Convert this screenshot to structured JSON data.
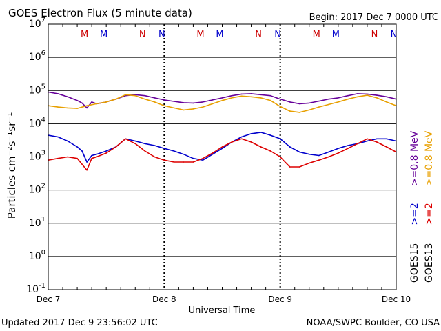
{
  "header": {
    "title": "GOES Electron Flux (5 minute data)",
    "begin": "Begin: 2017 Dec 7 0000 UTC"
  },
  "footer": {
    "updated": "Updated 2017 Dec  9 23:56:02 UTC",
    "credit": "NOAA/SWPC Boulder, CO USA"
  },
  "chart_data": {
    "type": "line",
    "xlabel": "Universal Time",
    "ylabel": "Particles cm⁻²s⁻¹sr⁻¹",
    "yscale": "log",
    "ylim": [
      0.1,
      10000000
    ],
    "xlim": [
      0,
      72
    ],
    "x_unit": "hours since 2017 Dec 7 0000 UTC",
    "grid": "horizontal decades",
    "reference_line": 1000,
    "x_ticks": [
      {
        "x": 0,
        "label": "Dec 7"
      },
      {
        "x": 24,
        "label": "Dec 8"
      },
      {
        "x": 48,
        "label": "Dec 9"
      },
      {
        "x": 72,
        "label": "Dec 10"
      }
    ],
    "y_ticks": [
      {
        "exp": 7,
        "mant": "10",
        "sup": "7"
      },
      {
        "exp": 6,
        "mant": "10",
        "sup": "6"
      },
      {
        "exp": 5,
        "mant": "10",
        "sup": "5"
      },
      {
        "exp": 4,
        "mant": "10",
        "sup": "4"
      },
      {
        "exp": 3,
        "mant": "10",
        "sup": "3"
      },
      {
        "exp": 2,
        "mant": "10",
        "sup": "2"
      },
      {
        "exp": 1,
        "mant": "10",
        "sup": "1"
      },
      {
        "exp": 0,
        "mant": "10",
        "sup": "0"
      },
      {
        "exp": -1,
        "mant": "10",
        "sup": "-1"
      }
    ],
    "local_time_markers": [
      {
        "x": 7.5,
        "label": "M",
        "color": "#cc0000"
      },
      {
        "x": 11.5,
        "label": "M",
        "color": "#0000cc"
      },
      {
        "x": 19.5,
        "label": "N",
        "color": "#cc0000"
      },
      {
        "x": 23.5,
        "label": "N",
        "color": "#0000cc"
      },
      {
        "x": 31.5,
        "label": "M",
        "color": "#cc0000"
      },
      {
        "x": 35.5,
        "label": "M",
        "color": "#0000cc"
      },
      {
        "x": 43.5,
        "label": "N",
        "color": "#cc0000"
      },
      {
        "x": 47.5,
        "label": "N",
        "color": "#0000cc"
      },
      {
        "x": 55.5,
        "label": "M",
        "color": "#cc0000"
      },
      {
        "x": 59.5,
        "label": "M",
        "color": "#0000cc"
      },
      {
        "x": 67.5,
        "label": "N",
        "color": "#cc0000"
      },
      {
        "x": 71.5,
        "label": "N",
        "color": "#0000cc"
      }
    ],
    "legend": {
      "placement": "right",
      "columns": [
        {
          "satellite": "GOES15",
          "items": [
            {
              "label": ">=2",
              "color": "#0000cc"
            },
            {
              "label": ">=0.8 MeV",
              "color": "#660099"
            }
          ]
        },
        {
          "satellite": "GOES13",
          "items": [
            {
              "label": ">=2",
              "color": "#dd0000"
            },
            {
              "label": ">=0.8 MeV",
              "color": "#e8a000"
            }
          ]
        }
      ]
    },
    "series": [
      {
        "name": "GOES15 >=0.8 MeV",
        "color": "#660099",
        "x": [
          0,
          2,
          4,
          6,
          7,
          8,
          9,
          10,
          12,
          14,
          16,
          18,
          20,
          22,
          24,
          26,
          28,
          30,
          32,
          34,
          36,
          38,
          40,
          42,
          44,
          46,
          48,
          50,
          52,
          54,
          56,
          58,
          60,
          62,
          64,
          66,
          68,
          70,
          72
        ],
        "y": [
          90000,
          80000,
          65000,
          50000,
          42000,
          30000,
          45000,
          40000,
          45000,
          55000,
          70000,
          75000,
          70000,
          60000,
          52000,
          47000,
          43000,
          42000,
          45000,
          52000,
          60000,
          70000,
          78000,
          80000,
          75000,
          70000,
          55000,
          45000,
          40000,
          42000,
          48000,
          55000,
          60000,
          70000,
          80000,
          78000,
          72000,
          65000,
          55000
        ]
      },
      {
        "name": "GOES13 >=0.8 MeV",
        "color": "#e8a000",
        "x": [
          0,
          2,
          4,
          6,
          8,
          10,
          12,
          14,
          16,
          18,
          20,
          22,
          24,
          26,
          28,
          30,
          32,
          34,
          36,
          38,
          40,
          42,
          44,
          46,
          48,
          50,
          52,
          54,
          56,
          58,
          60,
          62,
          64,
          66,
          68,
          70,
          72
        ],
        "y": [
          35000,
          32000,
          30000,
          29000,
          35000,
          40000,
          45000,
          55000,
          75000,
          70000,
          55000,
          45000,
          35000,
          30000,
          26000,
          28000,
          32000,
          40000,
          50000,
          60000,
          68000,
          65000,
          60000,
          50000,
          33000,
          24000,
          22000,
          26000,
          32000,
          38000,
          45000,
          55000,
          65000,
          72000,
          60000,
          45000,
          35000
        ]
      },
      {
        "name": "GOES15 >=2 MeV",
        "color": "#0000cc",
        "x": [
          0,
          2,
          4,
          6,
          7,
          8,
          9,
          10,
          12,
          14,
          16,
          18,
          20,
          22,
          24,
          26,
          28,
          30,
          32,
          34,
          36,
          38,
          40,
          42,
          44,
          46,
          48,
          50,
          52,
          54,
          56,
          58,
          60,
          62,
          64,
          66,
          68,
          70,
          72
        ],
        "y": [
          4500,
          4000,
          3000,
          2000,
          1500,
          700,
          1100,
          1200,
          1500,
          2000,
          3500,
          3000,
          2500,
          2200,
          1800,
          1500,
          1200,
          900,
          800,
          1200,
          1800,
          2800,
          4000,
          5000,
          5500,
          4500,
          3500,
          2000,
          1400,
          1200,
          1100,
          1400,
          1800,
          2200,
          2500,
          3000,
          3500,
          3500,
          3000
        ]
      },
      {
        "name": "GOES13 >=2 MeV",
        "color": "#dd0000",
        "x": [
          0,
          2,
          4,
          6,
          8,
          9,
          10,
          12,
          14,
          16,
          18,
          20,
          22,
          24,
          26,
          28,
          30,
          32,
          34,
          36,
          38,
          40,
          42,
          44,
          46,
          48,
          49,
          50,
          52,
          54,
          56,
          58,
          60,
          62,
          64,
          66,
          68,
          70,
          72
        ],
        "y": [
          800,
          900,
          1000,
          900,
          400,
          900,
          1000,
          1300,
          2000,
          3500,
          2500,
          1500,
          1000,
          800,
          700,
          700,
          700,
          900,
          1300,
          2000,
          2800,
          3500,
          2800,
          2000,
          1500,
          1000,
          700,
          500,
          500,
          650,
          800,
          1000,
          1300,
          1800,
          2500,
          3500,
          2800,
          2000,
          1400
        ]
      }
    ]
  }
}
